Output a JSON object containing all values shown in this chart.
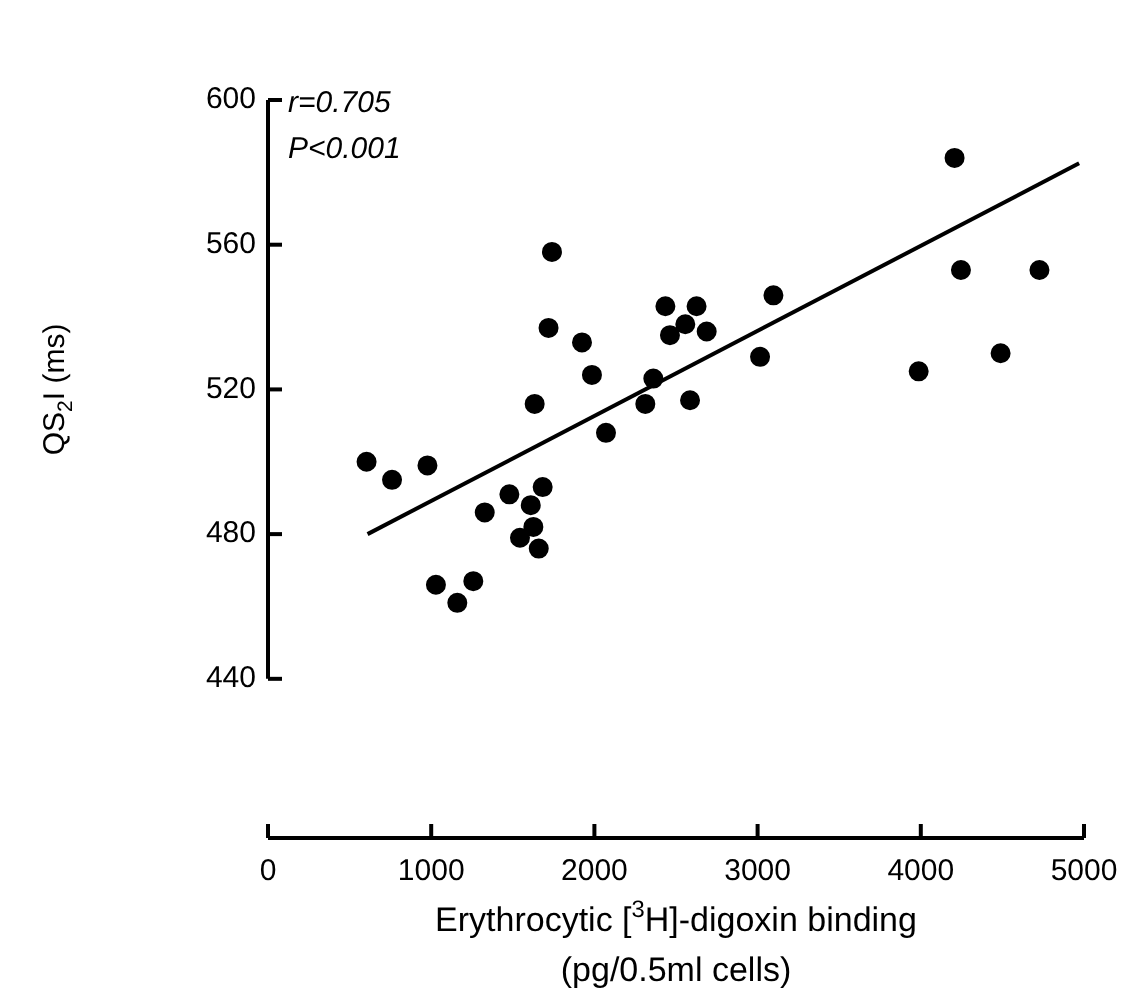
{
  "chart_data": {
    "type": "scatter",
    "xlabel": "Erythrocytic [$^{3}$H]-digoxin binding\n(pg/0.5ml cells)",
    "ylabel": "QS$_{2}$I (ms)",
    "annotations": [
      "r=0.705",
      "P<0.001"
    ],
    "xlim": [
      0,
      5000
    ],
    "xticks": [
      0,
      1000,
      2000,
      3000,
      4000,
      5000
    ],
    "ylim": [
      396,
      600
    ],
    "yticks": [
      440,
      480,
      520,
      560,
      600
    ],
    "grid": false,
    "legend": false,
    "marker": "circle",
    "series": [
      {
        "color": "#000000",
        "x": [
          604,
          760,
          977,
          1740,
          1719,
          1924,
          1985,
          1634,
          2071,
          1328,
          1479,
          1683,
          1610,
          1626,
          1544,
          1659,
          1029,
          1258,
          1160,
          2312,
          2361,
          2586,
          2435,
          2626,
          2463,
          2557,
          2688,
          3097,
          3015,
          3987,
          4207,
          4246,
          4727,
          4489
        ],
        "values": [
          500,
          495,
          499,
          558,
          537,
          533,
          524,
          516,
          508,
          486,
          491,
          493,
          488,
          482,
          479,
          476,
          466,
          467,
          461,
          516,
          523,
          517,
          543,
          543,
          535,
          538,
          536,
          546,
          529,
          525,
          584,
          553,
          553,
          530
        ]
      },
      {
        "type": "line",
        "color": "#000000",
        "line_style": "solid",
        "marker": "none",
        "x": [
          610,
          4970
        ],
        "values": [
          480,
          582.5
        ]
      }
    ]
  }
}
